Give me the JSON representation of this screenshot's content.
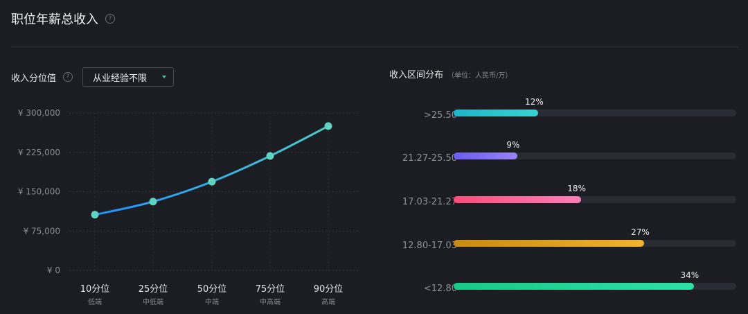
{
  "header": {
    "title": "职位年薪总收入",
    "help": "?"
  },
  "left_panel": {
    "label": "收入分位值",
    "help": "?",
    "select_value": "从业经验不限"
  },
  "right_panel": {
    "title": "收入区间分布",
    "unit": "（单位：人民币/万）"
  },
  "chart_data": [
    {
      "type": "line",
      "categories": [
        "10分位",
        "25分位",
        "50分位",
        "75分位",
        "90分位"
      ],
      "subcategories": [
        "低端",
        "中低端",
        "中端",
        "中高端",
        "高端"
      ],
      "values": [
        106000,
        131000,
        169000,
        218000,
        275000
      ],
      "ylim": [
        0,
        300000
      ],
      "yticks": [
        "¥ 0",
        "¥ 75,000",
        "¥ 150,000",
        "¥ 225,000",
        "¥ 300,000"
      ],
      "ytick_values": [
        0,
        75000,
        150000,
        225000,
        300000
      ],
      "grid": true,
      "colors": {
        "line_start": "#1e90ff",
        "line_end": "#4ec9c4",
        "point": "#5fd3c0"
      }
    },
    {
      "type": "bar",
      "orientation": "horizontal",
      "categories": [
        ">25.50",
        "21.27-25.50",
        "17.03-21.27",
        "12.80-17.03",
        "<12.80"
      ],
      "values": [
        12,
        9,
        18,
        27,
        34
      ],
      "value_labels": [
        "12%",
        "9%",
        "18%",
        "27%",
        "34%"
      ],
      "xlim": [
        0,
        40
      ],
      "colors": [
        [
          "#1fb5c9",
          "#38d2d0"
        ],
        [
          "#6a5cf0",
          "#9a83f5"
        ],
        [
          "#ff4d7a",
          "#ff7fb8"
        ],
        [
          "#c98a12",
          "#f2b22c"
        ],
        [
          "#19c98a",
          "#2fe0a6"
        ]
      ]
    }
  ]
}
